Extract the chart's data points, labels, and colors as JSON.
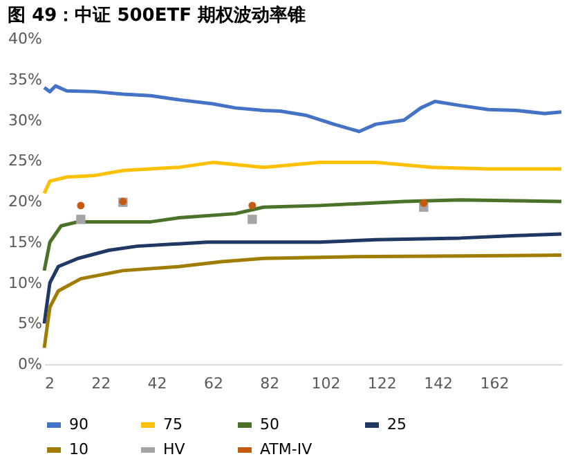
{
  "chart_data": {
    "type": "line",
    "title": "图 49：中证 500ETF 期权波动率锥",
    "xlim": [
      2,
      186
    ],
    "xticks": [
      2,
      22,
      42,
      62,
      82,
      102,
      122,
      142,
      162
    ],
    "ylim": [
      0,
      40
    ],
    "yticks": [
      {
        "value": 0,
        "label": "0%"
      },
      {
        "value": 5,
        "label": "5%"
      },
      {
        "value": 10,
        "label": "10%"
      },
      {
        "value": 15,
        "label": "15%"
      },
      {
        "value": 20,
        "label": "20%"
      },
      {
        "value": 25,
        "label": "25%"
      },
      {
        "value": 30,
        "label": "30%"
      },
      {
        "value": 35,
        "label": "35%"
      },
      {
        "value": 40,
        "label": "40%"
      }
    ],
    "grid": false,
    "legend": "bottom",
    "series": [
      {
        "name": "90",
        "color": "#4472c4",
        "x": [
          2,
          4,
          6,
          10,
          20,
          30,
          40,
          50,
          62,
          70,
          80,
          86,
          95,
          105,
          114,
          120,
          130,
          136,
          141,
          150,
          160,
          170,
          180,
          186
        ],
        "values": [
          34,
          33.5,
          34.2,
          33.6,
          33.5,
          33.2,
          33,
          32.5,
          32,
          31.5,
          31.2,
          31.1,
          30.6,
          29.5,
          28.6,
          29.5,
          30,
          31.5,
          32.3,
          31.8,
          31.3,
          31.2,
          30.8,
          31
        ]
      },
      {
        "name": "75",
        "color": "#ffc000",
        "x": [
          2,
          4,
          10,
          20,
          30,
          50,
          62,
          80,
          100,
          120,
          140,
          160,
          186
        ],
        "values": [
          21,
          22.5,
          23,
          23.2,
          23.8,
          24.2,
          24.8,
          24.2,
          24.8,
          24.8,
          24.2,
          24,
          24
        ]
      },
      {
        "name": "50",
        "color": "#4a7229",
        "x": [
          2,
          4,
          8,
          14,
          40,
          50,
          70,
          80,
          100,
          130,
          150,
          186
        ],
        "values": [
          11.5,
          15,
          17,
          17.5,
          17.5,
          18,
          18.5,
          19.3,
          19.5,
          20,
          20.2,
          20
        ]
      },
      {
        "name": "25",
        "color": "#203864",
        "x": [
          2,
          4,
          7,
          14,
          25,
          35,
          60,
          100,
          120,
          150,
          170,
          186
        ],
        "values": [
          5,
          10,
          12,
          13,
          14,
          14.5,
          15,
          15,
          15.3,
          15.5,
          15.8,
          16
        ]
      },
      {
        "name": "10",
        "color": "#a07c00",
        "x": [
          2,
          4,
          7,
          15,
          30,
          50,
          65,
          80,
          110,
          150,
          186
        ],
        "values": [
          2,
          7,
          9,
          10.5,
          11.5,
          12,
          12.6,
          13,
          13.2,
          13.3,
          13.4
        ]
      },
      {
        "name": "HV",
        "color": "#a5a5a5",
        "type": "scatter",
        "marker": "square",
        "x": [
          15,
          30,
          76,
          137
        ],
        "values": [
          17.8,
          19.9,
          17.8,
          19.3
        ]
      },
      {
        "name": "ATM-IV",
        "color": "#c55a11",
        "type": "scatter",
        "marker": "circle",
        "x": [
          15,
          30,
          76,
          137
        ],
        "values": [
          19.5,
          20,
          19.5,
          19.8
        ]
      }
    ]
  }
}
